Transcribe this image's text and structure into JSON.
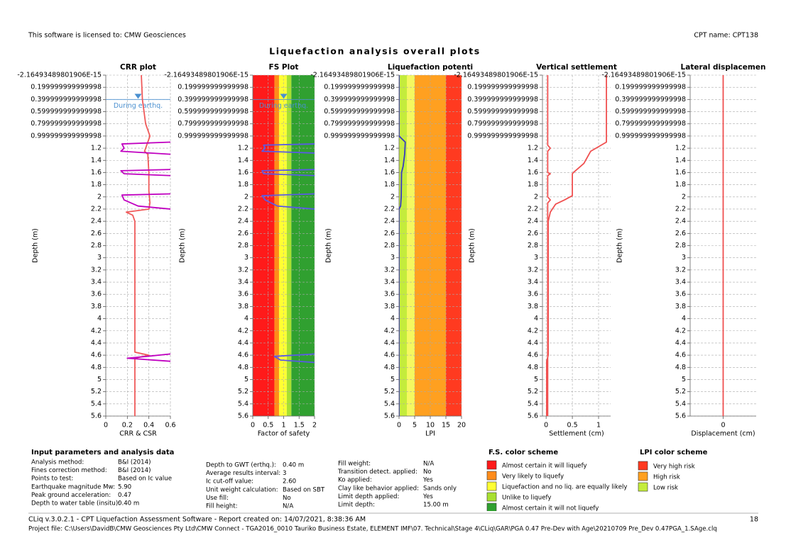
{
  "header": {
    "license": "This software is licensed to: CMW Geosciences",
    "cpt": "CPT name: CPT138",
    "title": "Liquefaction analysis overall plots"
  },
  "chart_data": [
    {
      "type": "depth_profile",
      "title": "CRR plot",
      "xlabel": "CRR & CSR",
      "ylabel": "Depth (m)",
      "xlim": [
        0,
        0.6
      ],
      "xticks": [
        0,
        0.2,
        0.4,
        0.6
      ],
      "ylim": [
        0,
        5.6
      ],
      "y_inverted": true,
      "grid": true,
      "yticks": [
        {
          "value": -2.16493489801906e-15,
          "label": "-2.16493489801906E-15"
        },
        0.199999999999998,
        0.399999999999998,
        0.599999999999998,
        0.799999999999998,
        0.999999999999998,
        1.2,
        1.4,
        1.6,
        1.8,
        2,
        2.2,
        2.4,
        2.6,
        2.8,
        3,
        3.2,
        3.4,
        3.6,
        3.8,
        4,
        4.2,
        4.4,
        4.6,
        4.8,
        5,
        5.2,
        5.4,
        5.6
      ],
      "water_table": {
        "depth": 0.4,
        "label": "During earthq.",
        "color": "#4a90d0"
      },
      "series": [
        {
          "color": "#f05a5a",
          "depth": [
            0,
            0.4,
            0.8,
            1.0,
            1.15,
            1.25,
            1.3,
            1.6,
            1.9,
            2.1,
            2.2,
            2.25,
            2.3,
            2.4,
            4.55,
            4.6,
            4.65,
            5.6
          ],
          "values": [
            0.33,
            0.34,
            0.37,
            0.41,
            0.38,
            0.36,
            0.39,
            0.4,
            0.4,
            0.41,
            0.4,
            0.19,
            0.25,
            0.27,
            0.27,
            0.4,
            0.27,
            0.27
          ]
        },
        {
          "color": "#c000c0",
          "depth": [
            1.1,
            1.13,
            1.2,
            1.25,
            1.3,
            null,
            1.55,
            1.57,
            1.62,
            1.65,
            null,
            1.95,
            1.97,
            2.05,
            2.15,
            2.2,
            null,
            4.58,
            4.62,
            4.65,
            4.7
          ],
          "values": [
            0.6,
            0.15,
            0.17,
            0.14,
            0.6,
            null,
            0.6,
            0.14,
            0.17,
            0.6,
            null,
            0.6,
            0.15,
            0.17,
            0.3,
            0.6,
            null,
            0.6,
            0.38,
            0.2,
            0.6
          ]
        }
      ]
    },
    {
      "type": "depth_profile",
      "title": "FS Plot",
      "xlabel": "Factor of safety",
      "ylabel": "Depth (m)",
      "xlim": [
        0,
        2
      ],
      "xticks": [
        0,
        0.5,
        1,
        1.5,
        2
      ],
      "ylim": [
        0,
        5.6
      ],
      "y_inverted": true,
      "grid": true,
      "yticks": [
        {
          "value": -2.16493489801906e-15,
          "label": "-2.16493489801906E-15"
        },
        0.199999999999998,
        0.399999999999998,
        0.599999999999998,
        0.799999999999998,
        0.999999999999998,
        1.2,
        1.4,
        1.6,
        1.8,
        2,
        2.2,
        2.4,
        2.6,
        2.8,
        3,
        3.2,
        3.4,
        3.6,
        3.8,
        4,
        4.2,
        4.4,
        4.6,
        4.8,
        5,
        5.2,
        5.4,
        5.6
      ],
      "bands": [
        {
          "from": 0,
          "to": 0.7,
          "color": "#ff1a1a"
        },
        {
          "from": 0.7,
          "to": 0.85,
          "color": "#ff8c1a"
        },
        {
          "from": 0.85,
          "to": 1.1,
          "color": "#ffff33"
        },
        {
          "from": 1.1,
          "to": 1.25,
          "color": "#a8e030"
        },
        {
          "from": 1.25,
          "to": 2,
          "color": "#30a030"
        }
      ],
      "water_table": {
        "depth": 0.4,
        "label": "During earthq.",
        "color": "#4a90d0"
      },
      "series": [
        {
          "color": "#5a5ae6",
          "depth": [
            1.13,
            1.15,
            1.2,
            1.25,
            1.28,
            null,
            1.55,
            1.57,
            1.62,
            1.65,
            null,
            1.95,
            1.98,
            2.05,
            2.15,
            2.2,
            null,
            4.58,
            4.62,
            4.68,
            4.72
          ],
          "values": [
            2,
            0.35,
            0.4,
            0.3,
            2,
            null,
            2,
            0.3,
            0.35,
            2,
            null,
            2,
            0.3,
            0.4,
            0.8,
            2,
            null,
            2,
            0.7,
            0.9,
            2
          ]
        }
      ]
    },
    {
      "type": "depth_profile",
      "title": "Liquefaction potenti",
      "xlabel": "LPI",
      "ylabel": "Depth (m)",
      "xlim": [
        0,
        20
      ],
      "xticks": [
        0,
        5,
        10,
        15,
        20
      ],
      "ylim": [
        0,
        5.6
      ],
      "y_inverted": true,
      "grid": true,
      "yticks": [
        {
          "value": -2.16493489801906e-15,
          "label": "-2.16493489801906E-15"
        },
        0.199999999999998,
        0.399999999999998,
        0.599999999999998,
        0.799999999999998,
        0.999999999999998,
        1.2,
        1.4,
        1.6,
        1.8,
        2,
        2.2,
        2.4,
        2.6,
        2.8,
        3,
        3.2,
        3.4,
        3.6,
        3.8,
        4,
        4.2,
        4.4,
        4.6,
        4.8,
        5,
        5.2,
        5.4,
        5.6
      ],
      "bands": [
        {
          "from": 0,
          "to": 2.5,
          "color": "#c4ec3c"
        },
        {
          "from": 2.5,
          "to": 5,
          "color": "#f4f860"
        },
        {
          "from": 5,
          "to": 15,
          "color": "#ffa020"
        },
        {
          "from": 15,
          "to": 20,
          "color": "#ff3a20"
        }
      ],
      "series": [
        {
          "color": "#3a3ac0",
          "depth": [
            0,
            1.0,
            1.1,
            1.3,
            1.5,
            1.6,
            2.0,
            2.15,
            2.2,
            5.6
          ],
          "values": [
            0,
            0,
            2.0,
            1.8,
            1.3,
            0.8,
            0.7,
            0.5,
            0,
            0
          ]
        }
      ]
    },
    {
      "type": "depth_profile",
      "title": "Vertical settlement",
      "xlabel": "Settlement (cm)",
      "ylabel": "Depth (m)",
      "xlim": [
        -0.07,
        1.23
      ],
      "xticks": [
        0,
        0.5,
        1
      ],
      "ylim": [
        0,
        5.6
      ],
      "y_inverted": true,
      "grid": true,
      "yticks": [
        {
          "value": -2.16493489801906e-15,
          "label": "-2.16493489801906E-15"
        },
        0.199999999999998,
        0.399999999999998,
        0.599999999999998,
        0.799999999999998,
        0.999999999999998,
        1.2,
        1.4,
        1.6,
        1.8,
        2,
        2.2,
        2.4,
        2.6,
        2.8,
        3,
        3.2,
        3.4,
        3.6,
        3.8,
        4,
        4.2,
        4.4,
        4.6,
        4.8,
        5,
        5.2,
        5.4,
        5.6
      ],
      "series": [
        {
          "color": "#f05050",
          "depth": [
            0,
            1.1,
            1.25,
            1.45,
            1.6,
            1.62,
            1.98,
            2.05,
            2.12,
            2.25,
            2.4,
            4.6,
            4.7,
            5.6
          ],
          "values": [
            1.15,
            1.15,
            0.85,
            0.72,
            0.52,
            0.5,
            0.5,
            0.35,
            0.18,
            0.08,
            0.04,
            0.04,
            0.01,
            0.01
          ]
        },
        {
          "color": "#f05050",
          "depth": [
            0,
            1.15,
            1.2,
            1.25,
            1.6,
            1.62,
            1.65,
            2.0,
            2.05,
            2.1,
            5.6
          ],
          "values": [
            0.03,
            0.03,
            0.08,
            0.03,
            0.03,
            0.08,
            0.03,
            0.03,
            0.08,
            0.03,
            0.03
          ]
        }
      ]
    },
    {
      "type": "depth_profile",
      "title": "Lateral displacemen",
      "xlabel": "Displacement (cm)",
      "ylabel": "Depth (m)",
      "xlim": [
        -1,
        1
      ],
      "xticks": [
        0
      ],
      "ylim": [
        0,
        5.6
      ],
      "y_inverted": true,
      "grid": true,
      "yticks": [
        {
          "value": -2.16493489801906e-15,
          "label": "-2.16493489801906E-15"
        },
        0.199999999999998,
        0.399999999999998,
        0.599999999999998,
        0.799999999999998,
        0.999999999999998,
        1.2,
        1.4,
        1.6,
        1.8,
        2,
        2.2,
        2.4,
        2.6,
        2.8,
        3,
        3.2,
        3.4,
        3.6,
        3.8,
        4,
        4.2,
        4.4,
        4.6,
        4.8,
        5,
        5.2,
        5.4,
        5.6
      ],
      "series": [
        {
          "color": "#f05050",
          "depth": [
            0,
            5.6
          ],
          "values": [
            0,
            0
          ]
        }
      ]
    }
  ],
  "parameters": {
    "title": "Input parameters and analysis data",
    "columns": [
      [
        {
          "label": "Analysis method:",
          "value": "B&I (2014)"
        },
        {
          "label": "Fines correction method:",
          "value": "B&I (2014)"
        },
        {
          "label": "Points to test:",
          "value": "Based on Ic value"
        },
        {
          "label": "Earthquake magnitude Mw:",
          "value": "5.90"
        },
        {
          "label": "Peak ground acceleration:",
          "value": "0.47"
        },
        {
          "label": "Depth to water table (insitu):",
          "value": "0.40 m"
        }
      ],
      [
        {
          "label": "Depth to GWT (erthq.):",
          "value": "0.40 m"
        },
        {
          "label": "Average results interval:",
          "value": "3"
        },
        {
          "label": "Ic cut-off value:",
          "value": "2.60"
        },
        {
          "label": "Unit weight calculation:",
          "value": "Based on SBT"
        },
        {
          "label": "Use fill:",
          "value": "No"
        },
        {
          "label": "Fill height:",
          "value": "N/A"
        }
      ],
      [
        {
          "label": "Fill weight:",
          "value": "N/A"
        },
        {
          "label": "Transition detect. applied:",
          "value": "No"
        },
        {
          "label": "Ko applied:",
          "value": "Yes"
        },
        {
          "label": "Clay like behavior applied:",
          "value": "Sands only"
        },
        {
          "label": "Limit depth applied:",
          "value": "Yes"
        },
        {
          "label": "Limit depth:",
          "value": "15.00 m"
        }
      ]
    ]
  },
  "fs_legend": {
    "title": "F.S. color scheme",
    "items": [
      {
        "label": "Almost certain it will liquefy",
        "color": "#ff1a1a"
      },
      {
        "label": "Very likely to liquefy",
        "color": "#ff8c1a"
      },
      {
        "label": "Liquefaction and no liq. are equally likely",
        "color": "#ffff33"
      },
      {
        "label": "Unlike to liquefy",
        "color": "#a8e030"
      },
      {
        "label": "Almost certain it will not liquefy",
        "color": "#30a030"
      }
    ]
  },
  "lpi_legend": {
    "title": "LPI color scheme",
    "items": [
      {
        "label": "Very high risk",
        "color": "#ff3a20"
      },
      {
        "label": "High risk",
        "color": "#ffa020"
      },
      {
        "label": "Low risk",
        "color": "#c4ec3c"
      }
    ]
  },
  "footer": {
    "software": "CLiq v.3.0.2.1 - CPT Liquefaction Assessment Software - Report created on: 14/07/2021, 8:38:36 AM",
    "page": "18",
    "project": "Project file: C:\\Users\\DavidB\\CMW Geosciences Pty Ltd\\CMW Connect - TGA2016_0010 Tauriko Business Estate, ELEMENT IMF\\07. Technical\\Stage 4\\CLiq\\GAR\\PGA 0.47 Pre-Dev with Age\\20210709 Pre_Dev 0.47PGA_1.SAge.clq"
  }
}
